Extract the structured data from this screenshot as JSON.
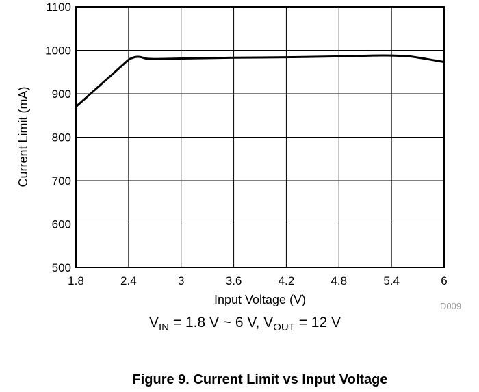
{
  "chart_data": {
    "type": "line",
    "xlabel": "Input Voltage (V)",
    "ylabel": "Current Limit (mA)",
    "xlim": [
      1.8,
      6
    ],
    "ylim": [
      500,
      1100
    ],
    "xticks": [
      "1.8",
      "2.4",
      "3",
      "3.6",
      "4.2",
      "4.8",
      "5.4",
      "6"
    ],
    "yticks": [
      "500",
      "600",
      "700",
      "800",
      "900",
      "1000",
      "1100"
    ],
    "grid": true,
    "legend": "none",
    "series": [
      {
        "color": "#000000",
        "x": [
          1.8,
          1.9,
          2.0,
          2.1,
          2.2,
          2.3,
          2.4,
          2.45,
          2.5,
          2.55,
          2.6,
          2.7,
          3.0,
          3.6,
          4.2,
          4.8,
          5.2,
          5.4,
          5.6,
          5.8,
          6.0
        ],
        "y": [
          870,
          888,
          906,
          924,
          942,
          960,
          978,
          983,
          985,
          984,
          981,
          980,
          981,
          983,
          984,
          986,
          988,
          988,
          986,
          980,
          973
        ]
      }
    ]
  },
  "figure_code": "D009",
  "conditions": {
    "v1": "V",
    "v1_sub": "IN",
    "v1_rest": " = 1.8 V ~ 6 V, V",
    "v2_sub": "OUT",
    "v2_rest": " = 12 V"
  },
  "caption": "Figure 9. Current Limit vs Input Voltage"
}
